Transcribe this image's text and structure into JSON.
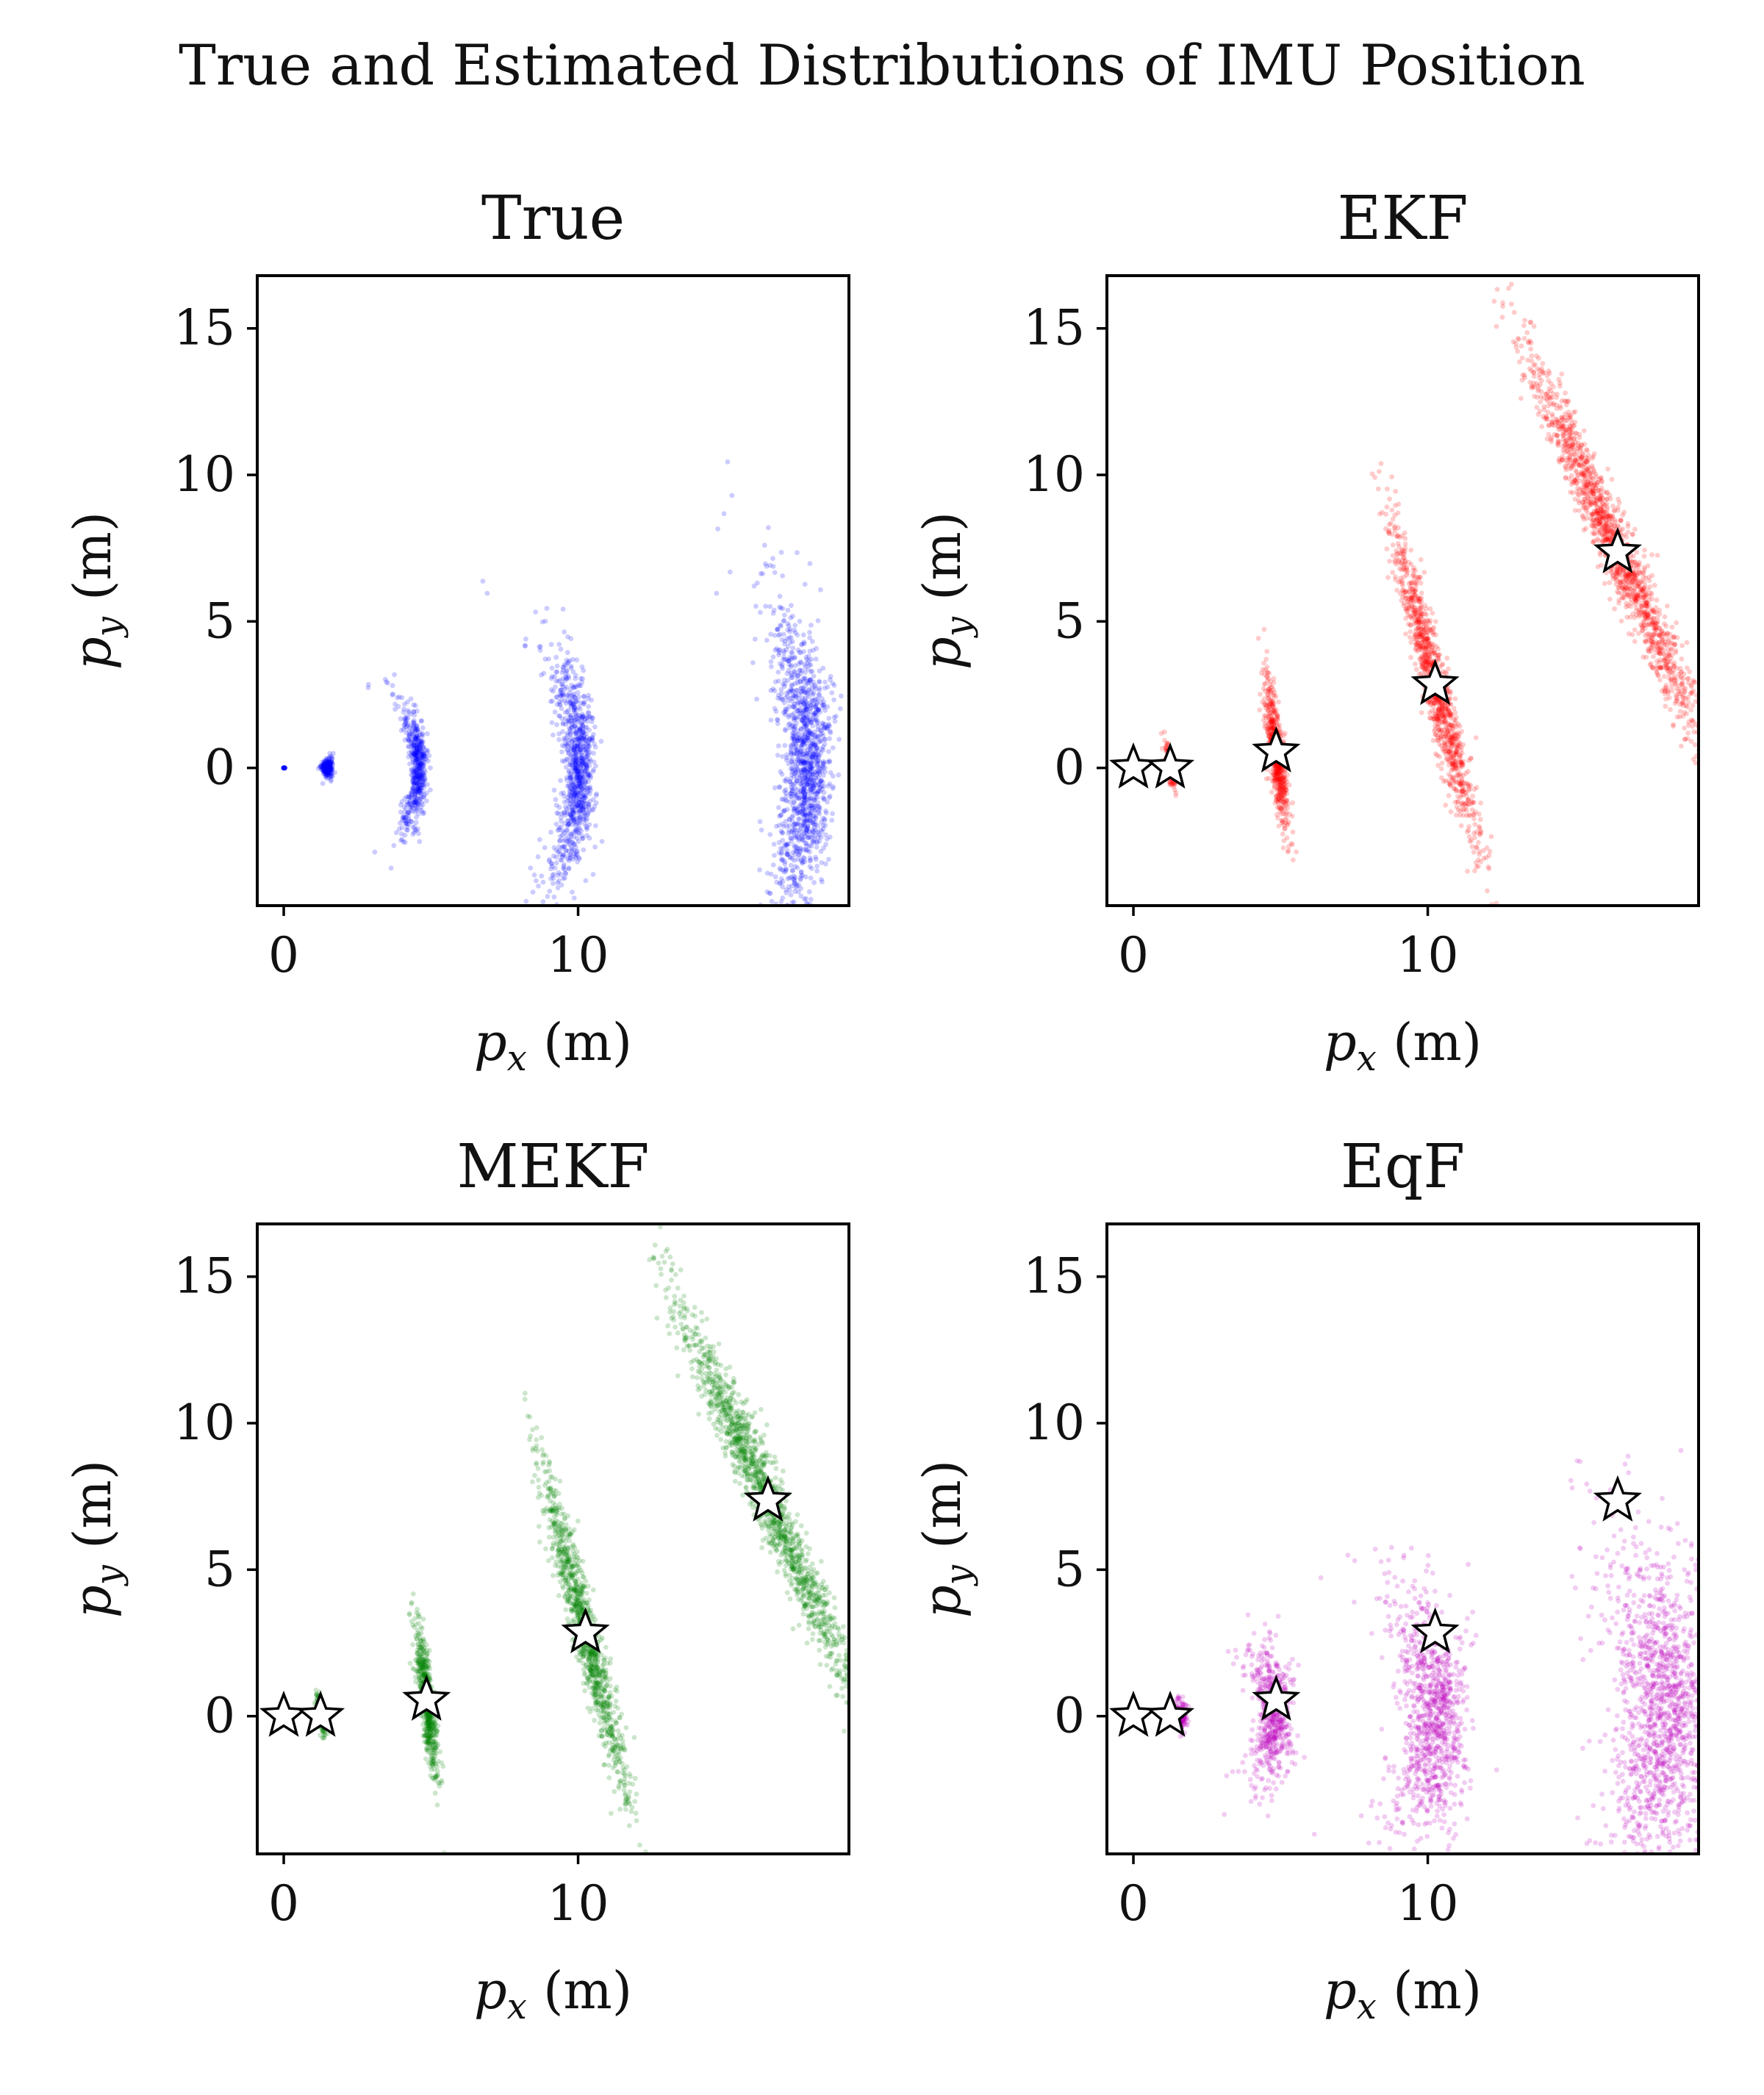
{
  "figure_title": "True and Estimated Distributions of IMU Position",
  "colors": {
    "True": "#0000ff",
    "EKF": "#ff0000",
    "MEKF": "#008000",
    "EqF": "#bf00bf",
    "marker_fill": "#ffffff",
    "marker_edge": "#000000"
  },
  "chart_data": [
    {
      "type": "scatter",
      "title": "True",
      "xlabel": "p_x (m)",
      "ylabel": "p_y (m)",
      "xlim": [
        -0.9,
        19.2
      ],
      "ylim": [
        -4.7,
        16.8
      ],
      "xticks": [
        0,
        10
      ],
      "yticks": [
        0,
        5,
        10,
        15
      ],
      "xtick_labels": [
        "0",
        "10"
      ],
      "ytick_labels": [
        "0",
        "5",
        "10",
        "15"
      ],
      "color": "#0000ff",
      "clusters": [
        {
          "cx": 0.0,
          "cy": 0.0,
          "r": 0.02,
          "arc": 0.0,
          "spread": 0.02,
          "n": 20
        },
        {
          "cx": 1.2,
          "cy": 0.0,
          "r": 0.3,
          "arc": 0.7,
          "spread": 0.06,
          "n": 260
        },
        {
          "cx": 0.0,
          "cy": 0.0,
          "r": 4.6,
          "arc": 0.52,
          "spread": 0.12,
          "n": 520
        },
        {
          "cx": 0.0,
          "cy": 0.0,
          "r": 10.05,
          "arc": 0.42,
          "spread": 0.22,
          "n": 900
        },
        {
          "cx": 0.0,
          "cy": 0.0,
          "r": 17.8,
          "arc": 0.32,
          "spread": 0.35,
          "n": 1300
        }
      ],
      "estimates": []
    },
    {
      "type": "scatter",
      "title": "EKF",
      "xlabel": "p_x (m)",
      "ylabel": "p_y (m)",
      "xlim": [
        -0.9,
        19.2
      ],
      "ylim": [
        -4.7,
        16.8
      ],
      "xticks": [
        0,
        10
      ],
      "yticks": [
        0,
        5,
        10,
        15
      ],
      "xtick_labels": [
        "0",
        "10"
      ],
      "ytick_labels": [
        "0",
        "5",
        "10",
        "15"
      ],
      "color": "#ff0000",
      "lines": [
        {
          "mx": 1.25,
          "my": 0.05,
          "half": 0.9,
          "slope": -7.0,
          "spread": 0.06,
          "n": 200
        },
        {
          "mx": 4.85,
          "my": 0.55,
          "half": 3.2,
          "slope": -8.0,
          "spread": 0.12,
          "n": 650
        },
        {
          "mx": 10.25,
          "my": 2.85,
          "half": 7.0,
          "slope": -3.9,
          "spread": 0.22,
          "n": 1100
        },
        {
          "mx": 16.45,
          "my": 7.35,
          "half": 9.5,
          "slope": -2.25,
          "spread": 0.3,
          "n": 1500
        }
      ],
      "estimates": [
        {
          "x": 0.0,
          "y": 0.0
        },
        {
          "x": 1.25,
          "y": 0.0
        },
        {
          "x": 4.85,
          "y": 0.55
        },
        {
          "x": 10.25,
          "y": 2.85
        },
        {
          "x": 16.45,
          "y": 7.35
        }
      ]
    },
    {
      "type": "scatter",
      "title": "MEKF",
      "xlabel": "p_x (m)",
      "ylabel": "p_y (m)",
      "xlim": [
        -0.9,
        19.2
      ],
      "ylim": [
        -4.7,
        16.8
      ],
      "xticks": [
        0,
        10
      ],
      "yticks": [
        0,
        5,
        10,
        15
      ],
      "xtick_labels": [
        "0",
        "10"
      ],
      "ytick_labels": [
        "0",
        "5",
        "10",
        "15"
      ],
      "color": "#008000",
      "lines": [
        {
          "mx": 1.25,
          "my": 0.05,
          "half": 0.9,
          "slope": -7.0,
          "spread": 0.06,
          "n": 200
        },
        {
          "mx": 4.85,
          "my": 0.55,
          "half": 3.2,
          "slope": -8.0,
          "spread": 0.12,
          "n": 650
        },
        {
          "mx": 10.25,
          "my": 2.85,
          "half": 7.0,
          "slope": -3.9,
          "spread": 0.22,
          "n": 1100
        },
        {
          "mx": 16.45,
          "my": 7.35,
          "half": 9.5,
          "slope": -2.25,
          "spread": 0.3,
          "n": 1500
        }
      ],
      "estimates": [
        {
          "x": 0.0,
          "y": 0.0
        },
        {
          "x": 1.25,
          "y": 0.0
        },
        {
          "x": 4.85,
          "y": 0.55
        },
        {
          "x": 10.25,
          "y": 2.85
        },
        {
          "x": 16.45,
          "y": 7.35
        }
      ]
    },
    {
      "type": "scatter",
      "title": "EqF",
      "xlabel": "p_x (m)",
      "ylabel": "p_y (m)",
      "xlim": [
        -0.9,
        19.2
      ],
      "ylim": [
        -4.7,
        16.8
      ],
      "xticks": [
        0,
        10
      ],
      "yticks": [
        0,
        5,
        10,
        15
      ],
      "xtick_labels": [
        "0",
        "10"
      ],
      "ytick_labels": [
        "0",
        "5",
        "10",
        "15"
      ],
      "color": "#bf00bf",
      "clusters": [
        {
          "cx": 1.25,
          "cy": 0.0,
          "r": 0.35,
          "arc": 0.8,
          "spread": 0.08,
          "n": 260
        },
        {
          "cx": 0.0,
          "cy": 0.0,
          "r": 4.8,
          "arc": 0.52,
          "spread": 0.25,
          "n": 600
        },
        {
          "cx": 0.0,
          "cy": 0.0,
          "r": 10.3,
          "arc": 0.44,
          "spread": 0.45,
          "n": 1000
        },
        {
          "cx": 0.0,
          "cy": 0.0,
          "r": 18.1,
          "arc": 0.33,
          "spread": 0.7,
          "n": 1400
        }
      ],
      "estimates": [
        {
          "x": 0.0,
          "y": 0.0
        },
        {
          "x": 1.25,
          "y": 0.0
        },
        {
          "x": 4.85,
          "y": 0.55
        },
        {
          "x": 10.25,
          "y": 2.85
        },
        {
          "x": 16.45,
          "y": 7.35
        }
      ]
    }
  ]
}
